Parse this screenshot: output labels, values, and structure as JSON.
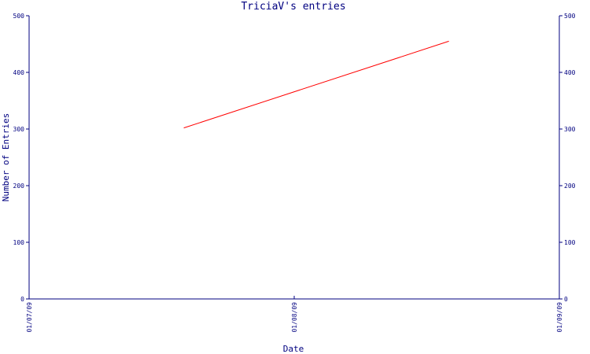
{
  "chart_data": {
    "type": "line",
    "title": "TriciaV's entries",
    "xlabel": "Date",
    "ylabel": "Number of Entries",
    "x_ticks": [
      "01/07/09",
      "01/08/09",
      "01/09/09"
    ],
    "y_ticks": [
      "0",
      "100",
      "200",
      "300",
      "400",
      "500"
    ],
    "xlim": [
      "01/07/09",
      "01/09/09"
    ],
    "ylim": [
      0,
      500
    ],
    "grid": false,
    "series": [
      {
        "x": [
          "01/07/09 14:00",
          "01/08/09 14:00"
        ],
        "values": [
          302,
          455
        ]
      }
    ],
    "colors": {
      "axis": "#000080",
      "line": "#ff0000",
      "background": "#ffffff"
    }
  }
}
